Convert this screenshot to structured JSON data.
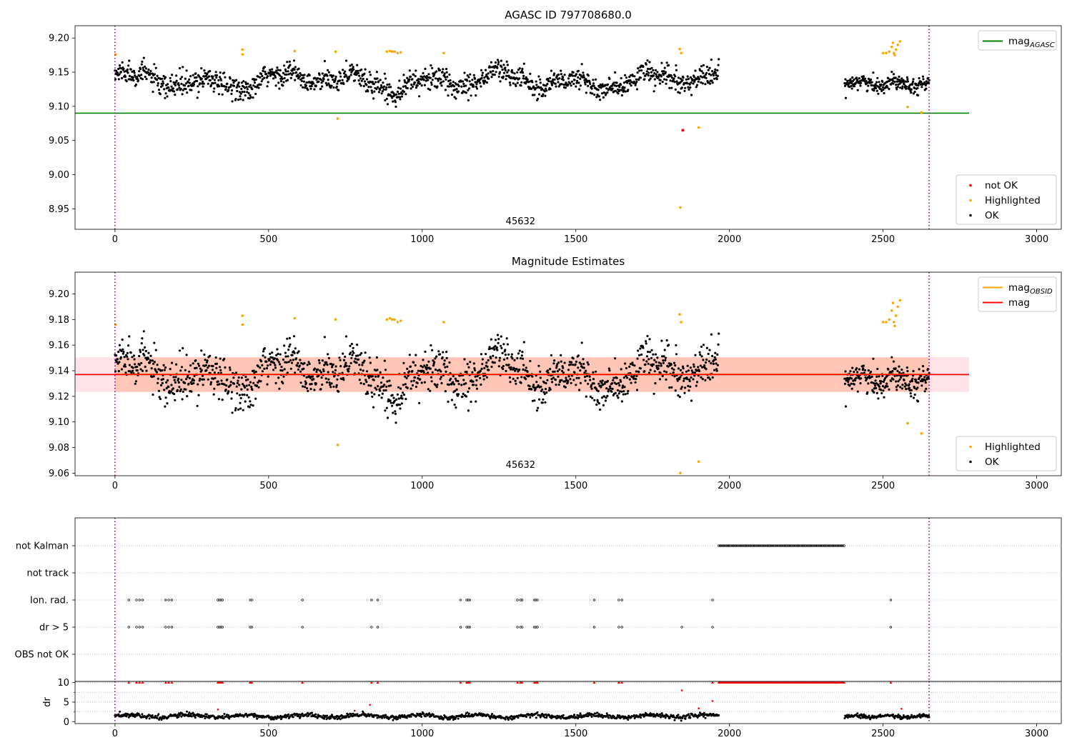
{
  "figure": {
    "obsid_marker": "45632"
  },
  "colors": {
    "ok": "#000000",
    "highlighted": "#ffa500",
    "not_ok": "#ff0000",
    "agasc_line": "#008000",
    "mag_line": "#ff0000",
    "mag_obsid_line": "#ffa500",
    "band_fill": "#ffc0cb",
    "band_overlap": "#ffa07a",
    "obsid_boundary": "#800080"
  },
  "chart_data": [
    {
      "id": "top",
      "type": "scatter",
      "title": "AGASC ID 797708680.0",
      "xlim": [
        -130,
        3080
      ],
      "ylim": [
        8.92,
        9.218
      ],
      "x_ticks": [
        0,
        500,
        1000,
        1500,
        2000,
        2500,
        3000
      ],
      "y_ticks": [
        8.95,
        9.0,
        9.05,
        9.1,
        9.15,
        9.2
      ],
      "y_tick_labels": [
        "8.95",
        "9.00",
        "9.05",
        "9.10",
        "9.15",
        "9.20"
      ],
      "grid": false,
      "annotation": {
        "text": "45632",
        "x": 1320,
        "y": 8.925
      },
      "obsid_boundaries": [
        0,
        2650
      ],
      "lines": [
        {
          "name": "mag_AGASC",
          "label_main": "mag",
          "label_sub": "AGASC",
          "y": 9.09,
          "x": [
            -130,
            2780
          ],
          "color": "#008000"
        }
      ],
      "ok_segments": [
        {
          "x0": 0,
          "x1": 1965,
          "center": 9.137,
          "spread": 0.015
        },
        {
          "x0": 2375,
          "x1": 2650,
          "center": 9.134,
          "spread": 0.01
        }
      ],
      "highlighted_points": [
        [
          2,
          9.176
        ],
        [
          415,
          9.183
        ],
        [
          415,
          9.176
        ],
        [
          585,
          9.181
        ],
        [
          718,
          9.18
        ],
        [
          725,
          9.082
        ],
        [
          885,
          9.18
        ],
        [
          895,
          9.181
        ],
        [
          902,
          9.18
        ],
        [
          910,
          9.18
        ],
        [
          920,
          9.178
        ],
        [
          930,
          9.179
        ],
        [
          1070,
          9.178
        ],
        [
          1838,
          9.184
        ],
        [
          1843,
          9.178
        ],
        [
          1840,
          8.952
        ],
        [
          1900,
          9.069
        ],
        [
          2500,
          9.178
        ],
        [
          2510,
          9.178
        ],
        [
          2520,
          9.18
        ],
        [
          2528,
          9.187
        ],
        [
          2532,
          9.193
        ],
        [
          2535,
          9.178
        ],
        [
          2538,
          9.175
        ],
        [
          2542,
          9.183
        ],
        [
          2548,
          9.19
        ],
        [
          2555,
          9.195
        ],
        [
          2580,
          9.099
        ],
        [
          2625,
          9.091
        ]
      ],
      "not_ok_points": [
        [
          1848,
          9.065
        ]
      ],
      "legends": [
        {
          "position": "top-right",
          "entries": [
            {
              "kind": "line",
              "color": "#008000",
              "label_main": "mag",
              "label_sub": "AGASC"
            }
          ]
        },
        {
          "position": "bottom-right",
          "entries": [
            {
              "kind": "dot",
              "color": "#ff0000",
              "label_main": "not OK",
              "label_sub": ""
            },
            {
              "kind": "dot",
              "color": "#ffa500",
              "label_main": "Highlighted",
              "label_sub": ""
            },
            {
              "kind": "dot",
              "color": "#000000",
              "label_main": "OK",
              "label_sub": ""
            }
          ]
        }
      ]
    },
    {
      "id": "middle",
      "type": "scatter",
      "title": "Magnitude Estimates",
      "xlim": [
        -130,
        3080
      ],
      "ylim": [
        9.058,
        9.217
      ],
      "x_ticks": [
        0,
        500,
        1000,
        1500,
        2000,
        2500,
        3000
      ],
      "y_ticks": [
        9.06,
        9.08,
        9.1,
        9.12,
        9.14,
        9.16,
        9.18,
        9.2
      ],
      "y_tick_labels": [
        "9.06",
        "9.08",
        "9.10",
        "9.12",
        "9.14",
        "9.16",
        "9.18",
        "9.20"
      ],
      "grid": false,
      "annotation": {
        "text": "45632",
        "x": 1320,
        "y": 9.063
      },
      "obsid_boundaries": [
        0,
        2650
      ],
      "lines": [
        {
          "name": "mag_OBSID",
          "label_main": "mag",
          "label_sub": "OBSID",
          "y": 9.1373,
          "x": [
            0,
            2650
          ],
          "color": "#ffa500"
        },
        {
          "name": "mag",
          "label_main": "mag",
          "label_sub": "",
          "y": 9.137,
          "x": [
            -130,
            2780
          ],
          "color": "#ff0000"
        }
      ],
      "bands": [
        {
          "y0": 9.1235,
          "y1": 9.1505,
          "x": [
            -130,
            2780
          ],
          "color": "#ffc0cb"
        },
        {
          "y0": 9.1235,
          "y1": 9.1505,
          "x": [
            0,
            2650
          ],
          "color": "#ffa07a"
        }
      ],
      "ok_segments": [
        {
          "x0": 0,
          "x1": 1965,
          "center": 9.137,
          "spread": 0.015
        },
        {
          "x0": 2375,
          "x1": 2650,
          "center": 9.134,
          "spread": 0.01
        }
      ],
      "highlighted_points": [
        [
          2,
          9.176
        ],
        [
          415,
          9.183
        ],
        [
          415,
          9.176
        ],
        [
          585,
          9.181
        ],
        [
          718,
          9.18
        ],
        [
          725,
          9.082
        ],
        [
          885,
          9.18
        ],
        [
          895,
          9.181
        ],
        [
          902,
          9.18
        ],
        [
          910,
          9.18
        ],
        [
          920,
          9.178
        ],
        [
          930,
          9.179
        ],
        [
          1070,
          9.178
        ],
        [
          1838,
          9.184
        ],
        [
          1843,
          9.178
        ],
        [
          1840,
          9.06
        ],
        [
          1900,
          9.069
        ],
        [
          2500,
          9.178
        ],
        [
          2510,
          9.178
        ],
        [
          2520,
          9.18
        ],
        [
          2528,
          9.187
        ],
        [
          2532,
          9.193
        ],
        [
          2535,
          9.178
        ],
        [
          2538,
          9.175
        ],
        [
          2542,
          9.183
        ],
        [
          2548,
          9.19
        ],
        [
          2555,
          9.195
        ],
        [
          2580,
          9.099
        ],
        [
          2625,
          9.091
        ]
      ],
      "not_ok_points": [],
      "legends": [
        {
          "position": "top-right",
          "entries": [
            {
              "kind": "line",
              "color": "#ffa500",
              "label_main": "mag",
              "label_sub": "OBSID"
            },
            {
              "kind": "line",
              "color": "#ff0000",
              "label_main": "mag",
              "label_sub": ""
            }
          ]
        },
        {
          "position": "bottom-right",
          "entries": [
            {
              "kind": "dot",
              "color": "#ffa500",
              "label_main": "Highlighted",
              "label_sub": ""
            },
            {
              "kind": "dot",
              "color": "#000000",
              "label_main": "OK",
              "label_sub": ""
            }
          ]
        }
      ]
    },
    {
      "id": "flags",
      "type": "scatter",
      "xlim": [
        -130,
        3080
      ],
      "categories": [
        "not Kalman",
        "not track",
        "Ion. rad.",
        "dr > 5",
        "OBS not OK"
      ],
      "grid": true,
      "obsid_boundaries": [
        0,
        2650
      ],
      "flag_ranges": [
        {
          "category": "not Kalman",
          "x0": 1965,
          "x1": 2375,
          "step": 4
        }
      ],
      "flag_points": [
        {
          "category": "Ion. rad.",
          "x": [
            45,
            70,
            80,
            90,
            165,
            175,
            185,
            335,
            340,
            345,
            350,
            440,
            445,
            610,
            835,
            855,
            1125,
            1145,
            1150,
            1155,
            1310,
            1320,
            1325,
            1365,
            1370,
            1375,
            1560,
            1640,
            1650,
            1945,
            2525
          ]
        },
        {
          "category": "dr > 5",
          "x": [
            45,
            70,
            80,
            90,
            165,
            175,
            185,
            335,
            340,
            345,
            350,
            440,
            445,
            610,
            835,
            855,
            1125,
            1145,
            1150,
            1155,
            1310,
            1320,
            1325,
            1365,
            1370,
            1375,
            1560,
            1640,
            1650,
            1845,
            1945,
            2525
          ]
        }
      ]
    },
    {
      "id": "dr",
      "type": "scatter",
      "xlim": [
        -130,
        3080
      ],
      "ylim": [
        -0.5,
        10.3
      ],
      "ylabel": "dr",
      "x_ticks": [
        0,
        500,
        1000,
        1500,
        2000,
        2500,
        3000
      ],
      "y_ticks": [
        0,
        5,
        10
      ],
      "y_tick_labels": [
        "0",
        "5",
        "10"
      ],
      "grid": true,
      "obsid_boundaries": [
        0,
        2650
      ],
      "dr_segments": [
        {
          "x0": 0,
          "x1": 1965,
          "center": 1.4,
          "spread": 0.5
        },
        {
          "x0": 2375,
          "x1": 2650,
          "center": 1.3,
          "spread": 0.45
        }
      ],
      "clipped_points_x": [
        45,
        70,
        80,
        90,
        165,
        175,
        185,
        335,
        340,
        345,
        350,
        440,
        445,
        610,
        835,
        855,
        1125,
        1145,
        1150,
        1155,
        1310,
        1320,
        1325,
        1365,
        1370,
        1375,
        1560,
        1640,
        1650,
        1945,
        2525
      ],
      "clipped_range": {
        "x0": 1965,
        "x1": 2375,
        "step": 4
      },
      "clipped_value": 10,
      "red_points": [
        [
          335,
          3.1
        ],
        [
          780,
          2.8
        ],
        [
          830,
          4.3
        ],
        [
          1845,
          8.0
        ],
        [
          1900,
          3.4
        ],
        [
          1945,
          5.3
        ],
        [
          2560,
          3.3
        ]
      ]
    }
  ]
}
